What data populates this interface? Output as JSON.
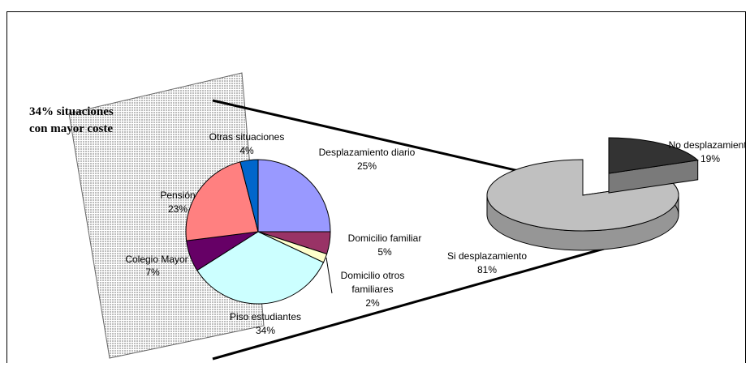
{
  "annotation": {
    "line1": "34% situaciones",
    "line2": "con mayor coste"
  },
  "colors": {
    "background": "#ffffff",
    "panel": "#d9d9d9",
    "border": "#000000"
  },
  "chart_data": [
    {
      "type": "pie",
      "title": "",
      "slices": [
        {
          "label": "Desplazamiento diario",
          "value": 25,
          "percent_label": "25%",
          "color": "#9999ff"
        },
        {
          "label": "Domicilio familiar",
          "value": 5,
          "percent_label": "5%",
          "color": "#993366"
        },
        {
          "label_lines": [
            "Domicilio otros",
            "familiares"
          ],
          "value": 2,
          "percent_label": "2%",
          "color": "#ffffcc"
        },
        {
          "label": "Piso estudiantes",
          "value": 34,
          "percent_label": "34%",
          "color": "#ccffff"
        },
        {
          "label": "Colegio Mayor",
          "value": 7,
          "percent_label": "7%",
          "color": "#660066"
        },
        {
          "label": "Pensión",
          "value": 23,
          "percent_label": "23%",
          "color": "#ff8080"
        },
        {
          "label": "Otras situaciones",
          "value": 4,
          "percent_label": "4%",
          "color": "#0066cc"
        }
      ]
    },
    {
      "type": "pie",
      "style": "3d",
      "title": "",
      "slices": [
        {
          "label": "No desplazamiento",
          "value": 19,
          "percent_label": "19%",
          "color": "#333333",
          "exploded": true
        },
        {
          "label": "Si desplazamiento",
          "value": 81,
          "percent_label": "81%",
          "color": "#c0c0c0"
        }
      ]
    }
  ]
}
